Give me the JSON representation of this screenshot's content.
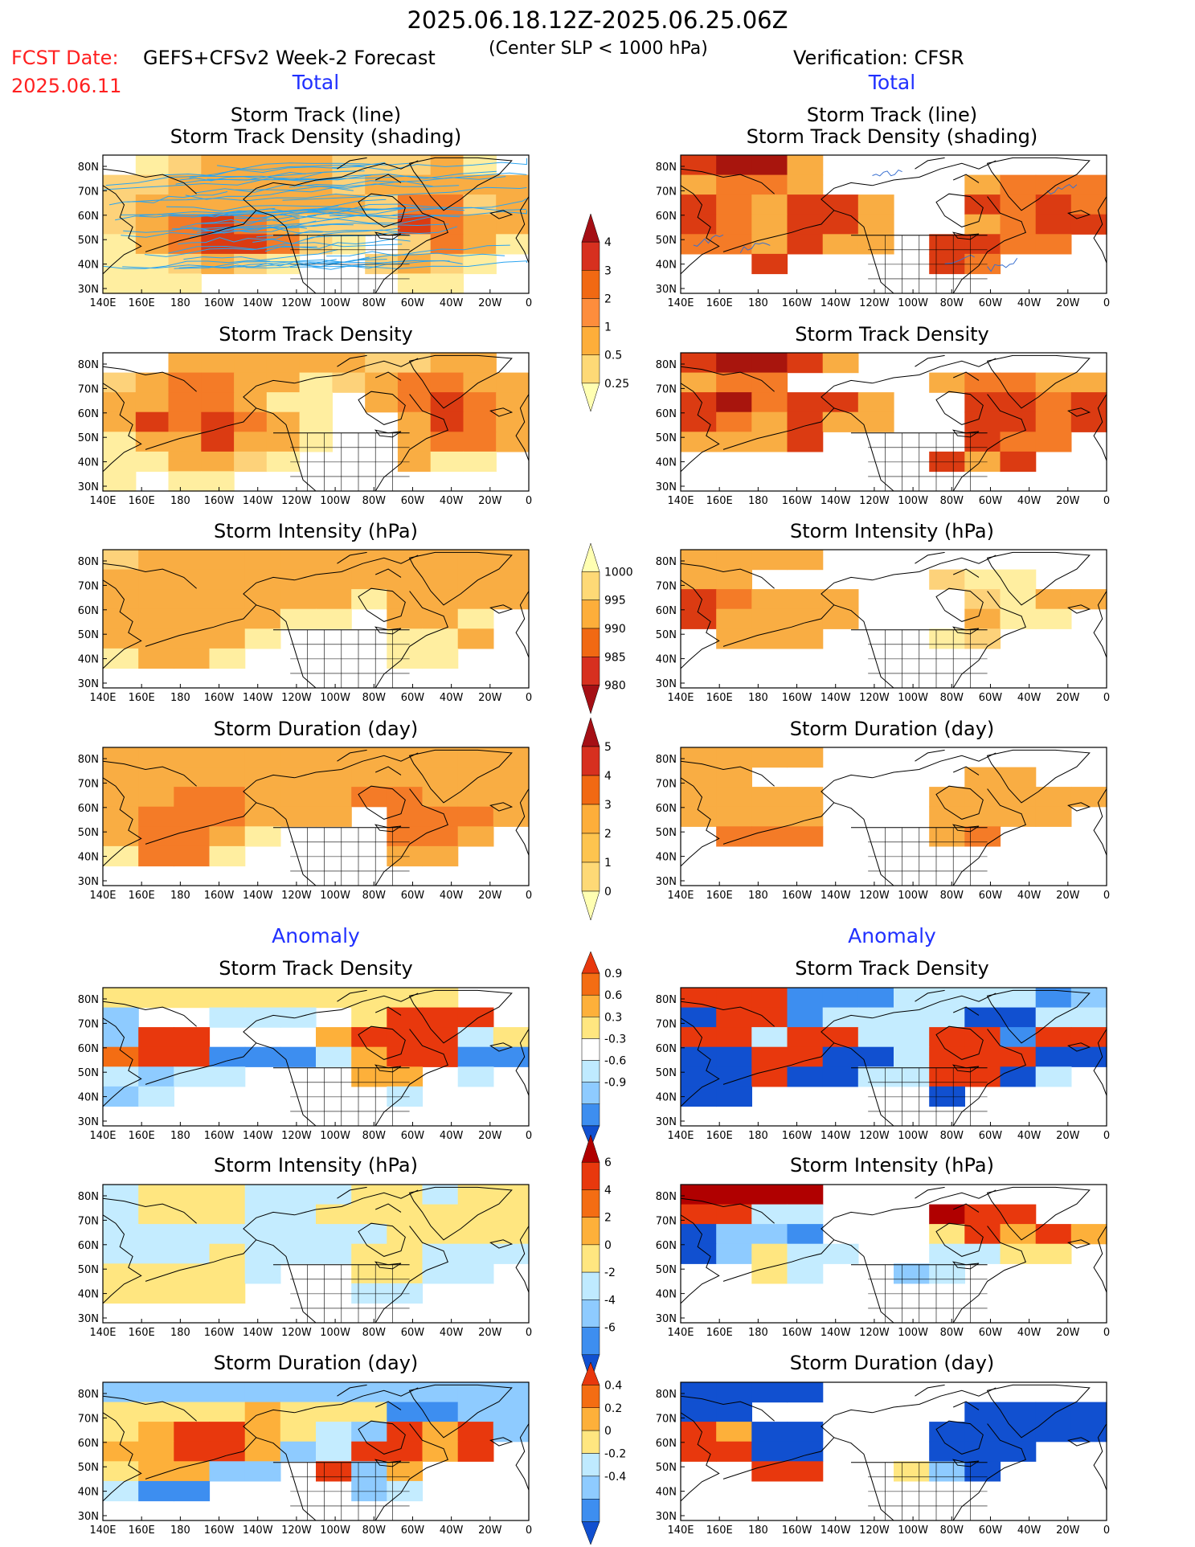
{
  "header": {
    "title": "2025.06.18.12Z-2025.06.25.06Z",
    "fcst_label": "FCST Date:",
    "fcst_date": "2025.06.11",
    "model": "GEFS+CFSv2 Week-2 Forecast",
    "condition": "(Center SLP < 1000 hPa)",
    "verification": "Verification: CFSR"
  },
  "sections": {
    "total": "Total",
    "anomaly": "Anomaly"
  },
  "axes": {
    "lat_labels": [
      "80N",
      "70N",
      "60N",
      "50N",
      "40N",
      "30N"
    ],
    "lon_labels": [
      "140E",
      "160E",
      "180",
      "160W",
      "140W",
      "120W",
      "100W",
      "80W",
      "60W",
      "40W",
      "20W",
      "0"
    ]
  },
  "panels": {
    "left": [
      {
        "title_line1": "Storm Track (line)",
        "title_line2": "Storm Track Density (shading)"
      },
      {
        "title_line1": "Storm Track Density"
      },
      {
        "title_line1": "Storm Intensity (hPa)"
      },
      {
        "title_line1": "Storm Duration (day)"
      },
      {
        "title_line1": "Storm Track Density"
      },
      {
        "title_line1": "Storm Intensity (hPa)"
      },
      {
        "title_line1": "Storm Duration (day)"
      }
    ],
    "right": [
      {
        "title_line1": "Storm Track (line)",
        "title_line2": "Storm Track Density (shading)"
      },
      {
        "title_line1": "Storm Track Density"
      },
      {
        "title_line1": "Storm Intensity (hPa)"
      },
      {
        "title_line1": "Storm Duration (day)"
      },
      {
        "title_line1": "Storm Track Density"
      },
      {
        "title_line1": "Storm Intensity (hPa)"
      },
      {
        "title_line1": "Storm Duration (day)"
      }
    ]
  },
  "colorbars": [
    {
      "name": "density",
      "labels": [
        "4",
        "3",
        "2",
        "1",
        "0.5",
        "0.25"
      ],
      "colors": [
        "#a50f15",
        "#d7301f",
        "#f16913",
        "#fd8d3c",
        "#fdae3a",
        "#fed976",
        "#ffffb2"
      ]
    },
    {
      "name": "intensity",
      "labels": [
        "1000",
        "995",
        "990",
        "985",
        "980"
      ],
      "colors": [
        "#ffffb2",
        "#fed976",
        "#fdae3a",
        "#f16913",
        "#d7301f",
        "#a50f15"
      ]
    },
    {
      "name": "duration",
      "labels": [
        "5",
        "4",
        "3",
        "2",
        "1",
        "0"
      ],
      "colors": [
        "#a50f15",
        "#d7301f",
        "#f16913",
        "#fdae3a",
        "#fdc44f",
        "#fed976",
        "#ffffb2"
      ]
    },
    {
      "name": "density-anomaly",
      "labels": [
        "0.9",
        "0.6",
        "0.3",
        "-0.3",
        "-0.6",
        "-0.9"
      ],
      "colors": [
        "#e8380d",
        "#f46d13",
        "#fdb03a",
        "#ffe680",
        "#ffffff",
        "#bfeaff",
        "#8ecbff",
        "#3d8ef0",
        "#1150d0"
      ]
    },
    {
      "name": "intensity-anomaly",
      "labels": [
        "6",
        "4",
        "2",
        "0",
        "-2",
        "-4",
        "-6"
      ],
      "colors": [
        "#b00000",
        "#e8380d",
        "#f46d13",
        "#fdb03a",
        "#ffe680",
        "#bfeaff",
        "#8ecbff",
        "#3d8ef0",
        "#1150d0"
      ]
    },
    {
      "name": "duration-anomaly",
      "labels": [
        "0.4",
        "0.2",
        "0",
        "-0.2",
        "-0.4"
      ],
      "colors": [
        "#e8380d",
        "#f46d13",
        "#fdb03a",
        "#ffe680",
        "#bfeaff",
        "#8ecbff",
        "#3d8ef0",
        "#1150d0"
      ]
    }
  ]
}
